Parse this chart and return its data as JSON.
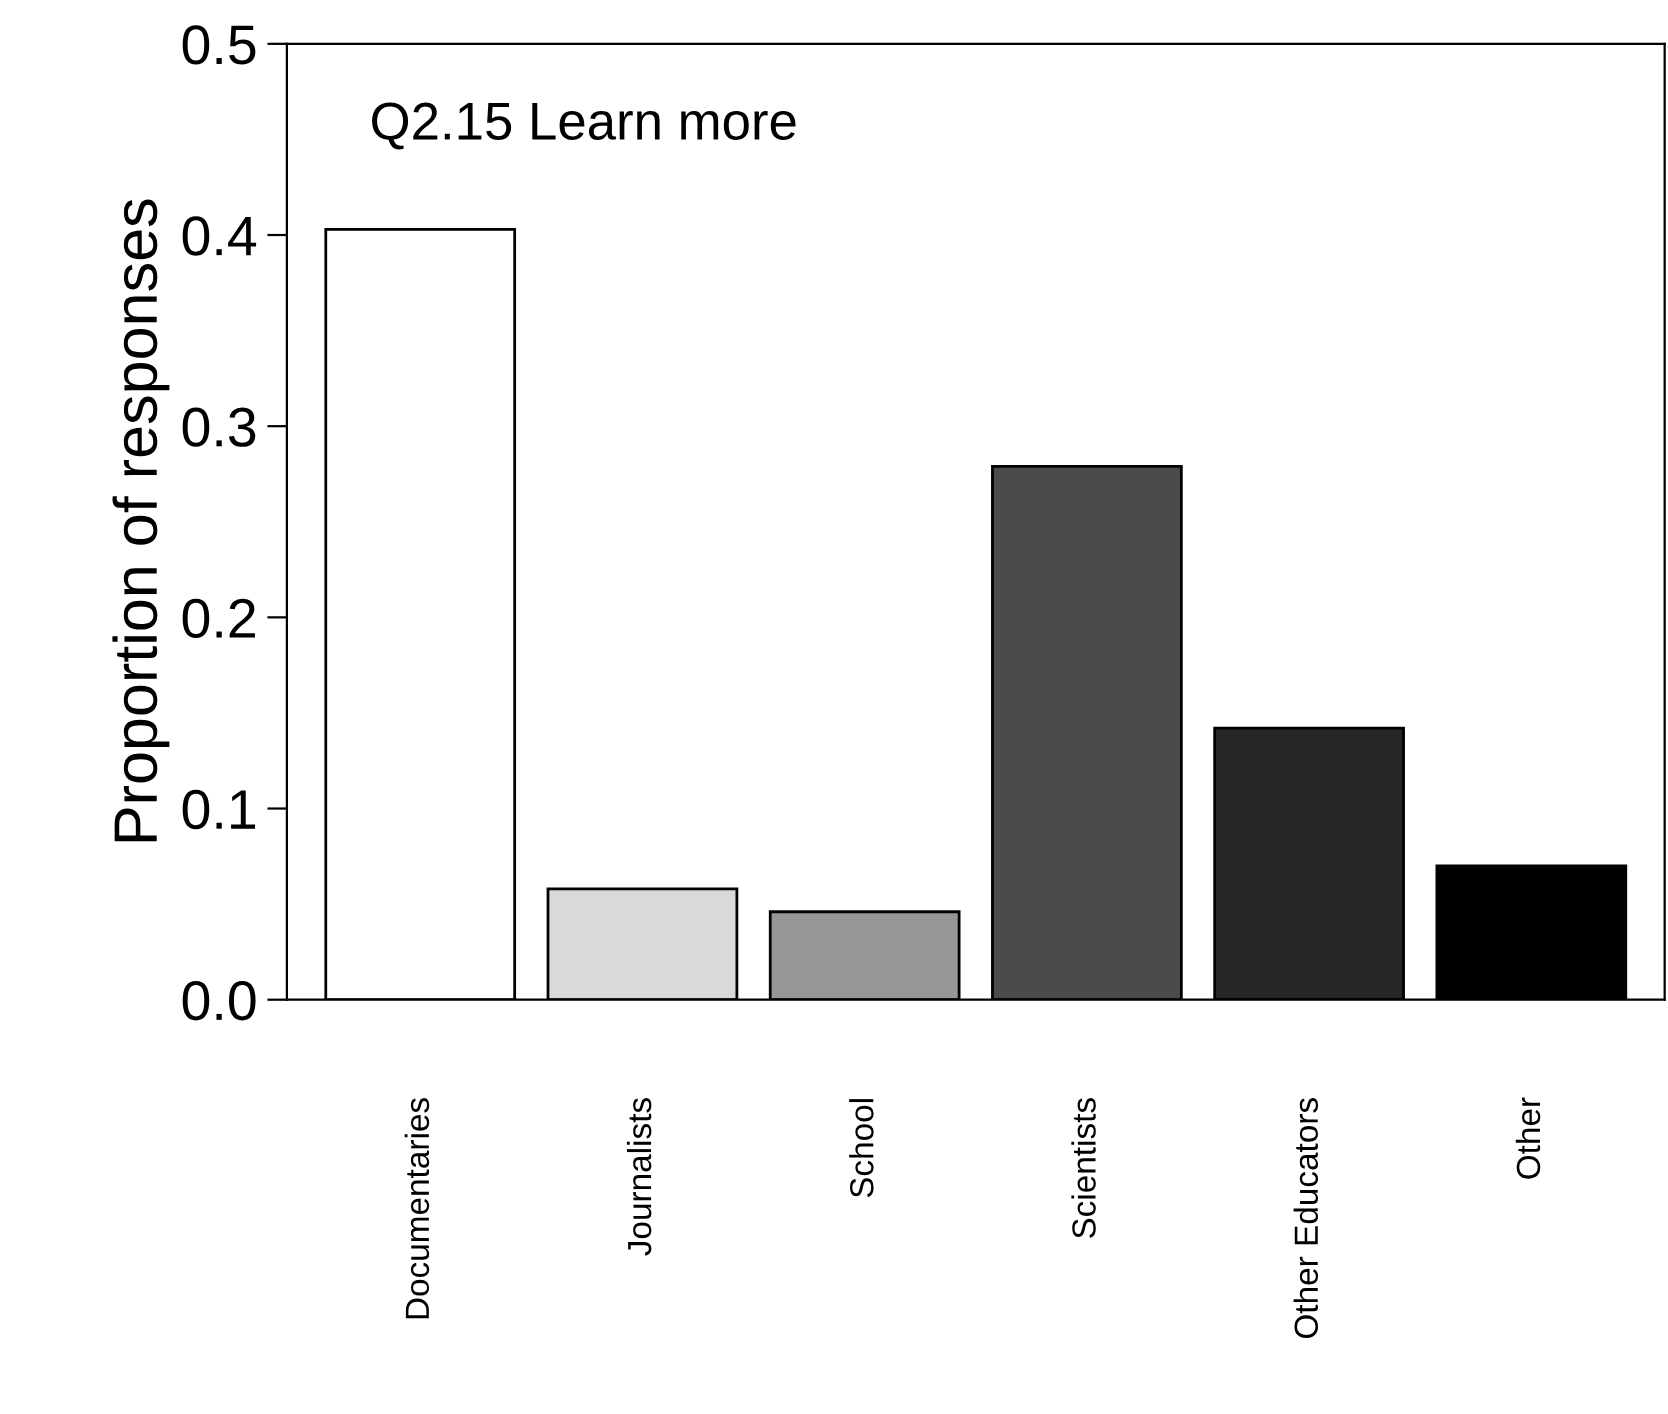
{
  "chart_data": {
    "type": "bar",
    "title": "Q2.15 Learn more",
    "ylabel": "Proportion of responses",
    "categories": [
      "Documentaries",
      "Journalists",
      "School",
      "Scientists",
      "Other Educators",
      "Other"
    ],
    "values": [
      0.403,
      0.058,
      0.046,
      0.279,
      0.142,
      0.07
    ],
    "colors": [
      "#ffffff",
      "#d9d9d9",
      "#969696",
      "#4b4b4b",
      "#262626",
      "#000000"
    ],
    "ylim": [
      0,
      0.5
    ],
    "yticks": [
      {
        "value": 0,
        "label": "0.0"
      },
      {
        "value": 0.1,
        "label": "0.1"
      },
      {
        "value": 0.2,
        "label": "0.2"
      },
      {
        "value": 0.3,
        "label": "0.3"
      },
      {
        "value": 0.4,
        "label": "0.4"
      },
      {
        "value": 0.5,
        "label": "0.5"
      }
    ],
    "grid": false,
    "legend": false
  }
}
